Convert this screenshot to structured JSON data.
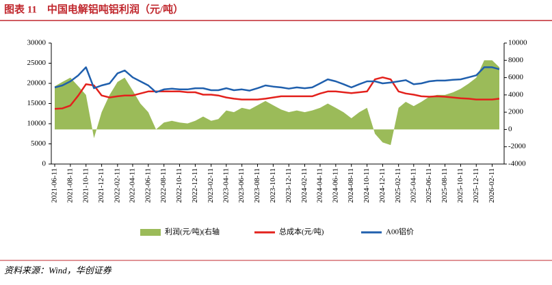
{
  "chart_data": {
    "type": "line",
    "title": "图表 11　中国电解铝吨铝利润（元/吨）",
    "source": "资料来源：Wind，华创证券",
    "x": [
      "2021-06-11",
      "2021-07-11",
      "2021-08-11",
      "2021-09-11",
      "2021-10-11",
      "2021-11-11",
      "2021-12-11",
      "2022-01-11",
      "2022-02-11",
      "2022-03-11",
      "2022-04-11",
      "2022-05-11",
      "2022-06-11",
      "2022-07-11",
      "2022-08-11",
      "2022-09-11",
      "2022-10-11",
      "2022-11-11",
      "2022-12-11",
      "2023-01-11",
      "2023-02-11",
      "2023-03-11",
      "2023-04-11",
      "2023-05-11",
      "2023-06-11",
      "2023-07-11",
      "2023-08-11",
      "2023-09-11",
      "2023-10-11",
      "2023-11-11",
      "2023-12-11",
      "2024-01-11",
      "2024-02-11",
      "2024-03-11",
      "2024-04-11",
      "2024-05-11",
      "2024-06-11",
      "2024-07-11",
      "2024-08-11",
      "2024-09-11",
      "2024-10-11",
      "2024-11-11",
      "2024-12-11",
      "2025-01-11",
      "2025-02-11",
      "2025-03-11",
      "2025-04-11",
      "2025-05-11",
      "2025-06-11",
      "2025-07-11",
      "2025-08-11",
      "2025-09-11",
      "2025-10-11",
      "2025-11-11",
      "2025-12-11",
      "2026-01-11",
      "2026-02-11",
      "2026-03-11"
    ],
    "xlim": [
      "2021-06-11",
      "2026-03-11"
    ],
    "xticks": [
      "2021-06-11",
      "2021-08-11",
      "2021-10-11",
      "2021-12-11",
      "2022-02-11",
      "2022-04-11",
      "2022-06-11",
      "2022-08-11",
      "2022-10-11",
      "2022-12-11",
      "2023-02-11",
      "2023-04-11",
      "2023-06-11",
      "2023-08-11",
      "2023-10-11",
      "2023-12-11",
      "2024-02-11",
      "2024-04-11",
      "2024-06-11",
      "2024-08-11",
      "2024-10-11",
      "2024-12-11",
      "2025-02-11",
      "2025-04-11",
      "2025-06-11",
      "2025-08-11",
      "2025-10-11",
      "2025-12-11",
      "2026-02-11"
    ],
    "ylim": [
      0,
      30000
    ],
    "yticks": [
      0,
      5000,
      10000,
      15000,
      20000,
      25000,
      30000
    ],
    "y2lim": [
      -4000,
      10000
    ],
    "y2ticks": [
      -4000,
      -2000,
      0,
      2000,
      4000,
      6000,
      8000,
      10000
    ],
    "series": [
      {
        "name": "利润(元/吨)(右轴",
        "color": "#9bbb59",
        "type": "area",
        "axis": "y2",
        "values": [
          5000,
          5500,
          6000,
          5000,
          4000,
          -1000,
          2000,
          4000,
          5500,
          6000,
          4500,
          3000,
          2000,
          0,
          800,
          1000,
          800,
          700,
          1000,
          1500,
          1000,
          1200,
          2200,
          2000,
          2500,
          2300,
          2800,
          3300,
          2800,
          2300,
          2000,
          2200,
          2000,
          2200,
          2500,
          3000,
          2500,
          2000,
          1300,
          2000,
          2500,
          -500,
          -1500,
          -1800,
          2500,
          3200,
          2700,
          3200,
          3800,
          4000,
          4000,
          4300,
          4700,
          5300,
          6000,
          8000,
          8000,
          7200
        ]
      },
      {
        "name": "总成本(元/吨)",
        "color": "#e3211c",
        "values": [
          13700,
          13800,
          14500,
          17000,
          19800,
          19500,
          17000,
          16500,
          16800,
          17000,
          17000,
          17500,
          18000,
          18000,
          18000,
          18000,
          18000,
          17800,
          17800,
          17200,
          17200,
          17000,
          16500,
          16200,
          16000,
          16000,
          16000,
          16200,
          16500,
          16800,
          16800,
          16800,
          16800,
          16800,
          17500,
          18000,
          18000,
          17800,
          17600,
          17800,
          18000,
          21000,
          21500,
          21000,
          18000,
          17500,
          17200,
          16800,
          16700,
          16800,
          16700,
          16500,
          16300,
          16200,
          16000,
          16000,
          16000,
          16200
        ]
      },
      {
        "name": "A00铝价",
        "color": "#1f5fad",
        "values": [
          19000,
          19500,
          20500,
          22000,
          24000,
          18800,
          19500,
          20000,
          22500,
          23200,
          21500,
          20500,
          19500,
          17800,
          18500,
          18700,
          18500,
          18500,
          18800,
          18800,
          18300,
          18300,
          18800,
          18300,
          18500,
          18200,
          18800,
          19500,
          19200,
          19000,
          18700,
          19000,
          18800,
          19000,
          20000,
          21000,
          20500,
          19800,
          19000,
          19800,
          20500,
          20500,
          20000,
          20200,
          20500,
          20800,
          19800,
          20000,
          20500,
          20700,
          20700,
          20900,
          21000,
          21500,
          22000,
          24000,
          24000,
          23500
        ]
      }
    ]
  }
}
